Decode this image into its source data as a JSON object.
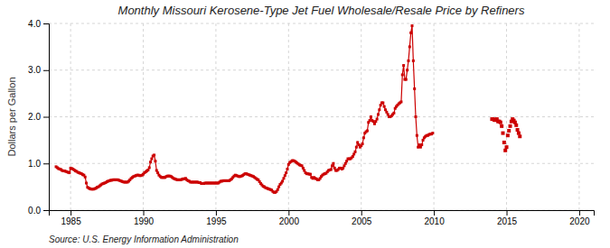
{
  "chart_data": {
    "type": "line",
    "title": "Monthly Missouri Kerosene-Type Jet Fuel Wholesale/Resale Price by Refiners",
    "ylabel": "Dollars per Gallon",
    "annotations": [
      "Source: U.S. Energy Information Administration"
    ],
    "xlim": [
      1983.5,
      2021
    ],
    "ylim": [
      0.0,
      4.0
    ],
    "xticks": [
      1985,
      1990,
      1995,
      2000,
      2005,
      2010,
      2015,
      2020
    ],
    "yticks": [
      {
        "value": 0.0,
        "label": "0.0"
      },
      {
        "value": 1.0,
        "label": "1.0"
      },
      {
        "value": 2.0,
        "label": "2.0"
      },
      {
        "value": 3.0,
        "label": "3.0"
      },
      {
        "value": 4.0,
        "label": "4.0"
      }
    ],
    "grid": true,
    "series": [
      {
        "type": "line",
        "marker": "square",
        "color": "#cc0000",
        "x": [
          1984.0,
          1984.083,
          1984.167,
          1984.25,
          1984.333,
          1984.417,
          1984.5,
          1984.583,
          1984.667,
          1984.75,
          1984.833,
          1984.917,
          1985.0,
          1985.083,
          1985.167,
          1985.25,
          1985.333,
          1985.417,
          1985.5,
          1985.583,
          1985.667,
          1985.75,
          1985.833,
          1985.917,
          1986.0,
          1986.083,
          1986.167,
          1986.25,
          1986.333,
          1986.417,
          1986.5,
          1986.583,
          1986.667,
          1986.75,
          1986.833,
          1986.917,
          1987.0,
          1987.083,
          1987.167,
          1987.25,
          1987.333,
          1987.417,
          1987.5,
          1987.583,
          1987.667,
          1987.75,
          1987.833,
          1987.917,
          1988.0,
          1988.083,
          1988.167,
          1988.25,
          1988.333,
          1988.417,
          1988.5,
          1988.583,
          1988.667,
          1988.75,
          1988.833,
          1988.917,
          1989.0,
          1989.083,
          1989.167,
          1989.25,
          1989.333,
          1989.417,
          1989.5,
          1989.583,
          1989.667,
          1989.75,
          1989.833,
          1989.917,
          1990.0,
          1990.083,
          1990.167,
          1990.25,
          1990.333,
          1990.417,
          1990.5,
          1990.583,
          1990.667,
          1990.75,
          1990.833,
          1990.917,
          1991.0,
          1991.083,
          1991.167,
          1991.25,
          1991.333,
          1991.417,
          1991.5,
          1991.583,
          1991.667,
          1991.75,
          1991.833,
          1991.917,
          1992.0,
          1992.083,
          1992.167,
          1992.25,
          1992.333,
          1992.417,
          1992.5,
          1992.583,
          1992.667,
          1992.75,
          1992.833,
          1992.917,
          1993.0,
          1993.083,
          1993.167,
          1993.25,
          1993.333,
          1993.417,
          1993.5,
          1993.583,
          1993.667,
          1993.75,
          1993.833,
          1993.917,
          1994.0,
          1994.083,
          1994.167,
          1994.25,
          1994.333,
          1994.417,
          1994.5,
          1994.583,
          1994.667,
          1994.75,
          1994.833,
          1994.917,
          1995.0,
          1995.083,
          1995.167,
          1995.25,
          1995.333,
          1995.417,
          1995.5,
          1995.583,
          1995.667,
          1995.75,
          1995.833,
          1995.917,
          1996.0,
          1996.083,
          1996.167,
          1996.25,
          1996.333,
          1996.417,
          1996.5,
          1996.583,
          1996.667,
          1996.75,
          1996.833,
          1996.917,
          1997.0,
          1997.083,
          1997.167,
          1997.25,
          1997.333,
          1997.417,
          1997.5,
          1997.583,
          1997.667,
          1997.75,
          1997.833,
          1997.917,
          1998.0,
          1998.083,
          1998.167,
          1998.25,
          1998.333,
          1998.417,
          1998.5,
          1998.583,
          1998.667,
          1998.75,
          1998.833,
          1998.917,
          1999.0,
          1999.083,
          1999.167,
          1999.25,
          1999.333,
          1999.417,
          1999.5,
          1999.583,
          1999.667,
          1999.75,
          1999.833,
          1999.917,
          2000.0,
          2000.083,
          2000.167,
          2000.25,
          2000.333,
          2000.417,
          2000.5,
          2000.583,
          2000.667,
          2000.75,
          2000.833,
          2000.917,
          2001.0,
          2001.083,
          2001.167,
          2001.25,
          2001.333,
          2001.417,
          2001.5,
          2001.583,
          2001.667,
          2001.75,
          2001.833,
          2001.917,
          2002.0,
          2002.083,
          2002.167,
          2002.25,
          2002.333,
          2002.417,
          2002.5,
          2002.583,
          2002.667,
          2002.75,
          2002.833,
          2002.917,
          2003.0,
          2003.083,
          2003.167,
          2003.25,
          2003.333,
          2003.417,
          2003.5,
          2003.583,
          2003.667,
          2003.75,
          2003.833,
          2003.917,
          2004.0,
          2004.083,
          2004.167,
          2004.25,
          2004.333,
          2004.417,
          2004.5,
          2004.583,
          2004.667,
          2004.75,
          2004.833,
          2004.917,
          2005.0,
          2005.083,
          2005.167,
          2005.25,
          2005.333,
          2005.417,
          2005.5,
          2005.583,
          2005.667,
          2005.75,
          2005.833,
          2005.917,
          2006.0,
          2006.083,
          2006.167,
          2006.25,
          2006.333,
          2006.417,
          2006.5,
          2006.583,
          2006.667,
          2006.75,
          2006.833,
          2006.917,
          2007.0,
          2007.083,
          2007.167,
          2007.25,
          2007.333,
          2007.417,
          2007.5,
          2007.583,
          2007.667,
          2007.75,
          2007.833,
          2007.917,
          2008.0,
          2008.083,
          2008.167,
          2008.25,
          2008.333,
          2008.417,
          2008.5,
          2008.583,
          2008.667,
          2008.75,
          2008.833,
          2008.917,
          2009.0,
          2009.083,
          2009.167,
          2009.25,
          2009.333,
          2009.417,
          2009.5,
          2009.583,
          2009.667,
          2009.75,
          2009.833,
          2009.917
        ],
        "values": [
          0.93,
          0.91,
          0.89,
          0.88,
          0.87,
          0.85,
          0.84,
          0.84,
          0.83,
          0.82,
          0.81,
          0.8,
          0.9,
          0.89,
          0.88,
          0.86,
          0.84,
          0.83,
          0.81,
          0.8,
          0.79,
          0.78,
          0.76,
          0.75,
          0.71,
          0.58,
          0.49,
          0.47,
          0.46,
          0.45,
          0.45,
          0.45,
          0.46,
          0.47,
          0.49,
          0.5,
          0.52,
          0.54,
          0.56,
          0.57,
          0.58,
          0.59,
          0.61,
          0.62,
          0.63,
          0.64,
          0.64,
          0.65,
          0.65,
          0.65,
          0.65,
          0.65,
          0.64,
          0.63,
          0.62,
          0.61,
          0.6,
          0.6,
          0.6,
          0.6,
          0.62,
          0.65,
          0.68,
          0.7,
          0.72,
          0.73,
          0.74,
          0.75,
          0.75,
          0.74,
          0.74,
          0.75,
          0.77,
          0.8,
          0.82,
          0.84,
          0.86,
          0.91,
          1.03,
          1.1,
          1.16,
          1.18,
          1.05,
          0.85,
          0.8,
          0.75,
          0.72,
          0.7,
          0.7,
          0.7,
          0.7,
          0.72,
          0.73,
          0.73,
          0.73,
          0.72,
          0.7,
          0.68,
          0.67,
          0.66,
          0.65,
          0.65,
          0.65,
          0.65,
          0.66,
          0.67,
          0.67,
          0.68,
          0.65,
          0.63,
          0.62,
          0.6,
          0.6,
          0.6,
          0.6,
          0.6,
          0.6,
          0.6,
          0.59,
          0.59,
          0.57,
          0.57,
          0.57,
          0.58,
          0.58,
          0.58,
          0.58,
          0.58,
          0.58,
          0.58,
          0.58,
          0.58,
          0.58,
          0.58,
          0.58,
          0.6,
          0.62,
          0.62,
          0.63,
          0.63,
          0.63,
          0.63,
          0.63,
          0.63,
          0.65,
          0.67,
          0.7,
          0.73,
          0.75,
          0.74,
          0.73,
          0.72,
          0.72,
          0.73,
          0.74,
          0.76,
          0.78,
          0.78,
          0.77,
          0.76,
          0.75,
          0.74,
          0.73,
          0.72,
          0.7,
          0.68,
          0.66,
          0.65,
          0.61,
          0.57,
          0.54,
          0.51,
          0.5,
          0.48,
          0.47,
          0.46,
          0.45,
          0.44,
          0.43,
          0.4,
          0.38,
          0.38,
          0.4,
          0.44,
          0.5,
          0.55,
          0.58,
          0.62,
          0.68,
          0.74,
          0.8,
          0.88,
          0.98,
          1.02,
          1.04,
          1.06,
          1.06,
          1.05,
          1.03,
          1.01,
          0.99,
          0.97,
          0.96,
          0.95,
          0.9,
          0.85,
          0.8,
          0.78,
          0.78,
          0.77,
          0.77,
          0.7,
          0.68,
          0.7,
          0.68,
          0.67,
          0.65,
          0.65,
          0.68,
          0.72,
          0.75,
          0.77,
          0.78,
          0.79,
          0.82,
          0.85,
          0.86,
          0.87,
          0.95,
          1.0,
          0.9,
          0.85,
          0.85,
          0.87,
          0.9,
          0.9,
          0.88,
          0.9,
          0.95,
          1.0,
          1.05,
          1.1,
          1.1,
          1.1,
          1.12,
          1.15,
          1.2,
          1.25,
          1.35,
          1.45,
          1.4,
          1.35,
          1.38,
          1.42,
          1.55,
          1.65,
          1.68,
          1.7,
          1.88,
          1.92,
          2.0,
          1.92,
          1.9,
          1.85,
          1.9,
          1.95,
          2.05,
          2.15,
          2.25,
          2.3,
          2.3,
          2.22,
          2.15,
          2.1,
          2.05,
          2.0,
          2.0,
          2.02,
          2.05,
          2.08,
          2.18,
          2.22,
          2.25,
          2.28,
          2.3,
          2.32,
          2.9,
          3.1,
          2.8,
          2.8,
          3.0,
          3.2,
          3.5,
          3.8,
          3.95,
          3.2,
          2.6,
          2.0,
          1.6,
          1.35,
          1.4,
          1.35,
          1.4,
          1.5,
          1.55,
          1.58,
          1.6,
          1.6,
          1.62,
          1.63,
          1.63,
          1.65
        ]
      },
      {
        "type": "scatter",
        "marker": "square",
        "color": "#cc0000",
        "x": [
          2014.0,
          2014.083,
          2014.167,
          2014.25,
          2014.333,
          2014.417,
          2014.5,
          2014.583,
          2014.667,
          2014.75,
          2014.833,
          2014.917,
          2015.0,
          2015.083,
          2015.167,
          2015.25,
          2015.333,
          2015.417,
          2015.5,
          2015.583,
          2015.667,
          2015.75,
          2015.833,
          2015.917
        ],
        "values": [
          1.95,
          1.95,
          1.93,
          1.93,
          1.95,
          1.9,
          1.9,
          1.88,
          1.8,
          1.65,
          1.45,
          1.28,
          1.35,
          1.6,
          1.7,
          1.8,
          1.9,
          1.95,
          1.92,
          1.88,
          1.82,
          1.72,
          1.65,
          1.58
        ]
      }
    ]
  }
}
